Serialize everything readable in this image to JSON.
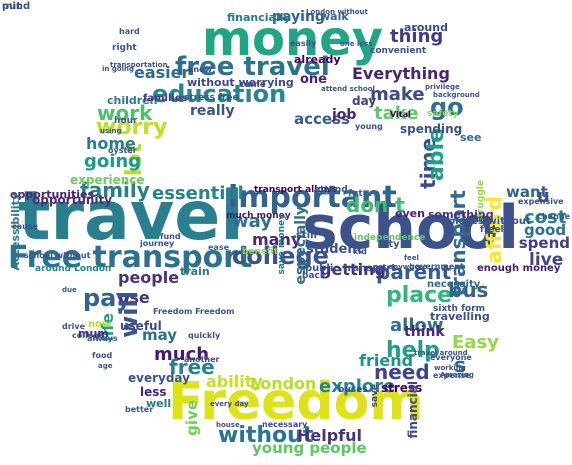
{
  "word_cloud": {
    "words": [
      {
        "text": "travel",
        "color": "#2a7f8e"
      },
      {
        "text": "school",
        "color": "#3b528b"
      },
      {
        "text": "money",
        "color": "#21a685"
      },
      {
        "text": "Freedom",
        "color": "#dde318"
      },
      {
        "text": "Free transport",
        "color": "#2c718e"
      },
      {
        "text": "important",
        "color": "#33628d"
      },
      {
        "text": "college",
        "color": "#3b528b"
      },
      {
        "text": "free travel",
        "color": "#2c728e"
      },
      {
        "text": "education",
        "color": "#24868e"
      },
      {
        "text": "worry",
        "color": "#bddf26"
      },
      {
        "text": "lot",
        "color": "#b5de2b"
      },
      {
        "text": "work",
        "color": "#4ac16d"
      },
      {
        "text": "family",
        "color": "#277f8e"
      },
      {
        "text": "essential",
        "color": "#26828e"
      },
      {
        "text": "way",
        "color": "#2d708e"
      },
      {
        "text": "don t",
        "color": "#3fbc73"
      },
      {
        "text": "go",
        "color": "#2c728e"
      },
      {
        "text": "time",
        "color": "#3e4989"
      },
      {
        "text": "able",
        "color": "#1fa088"
      },
      {
        "text": "thing",
        "color": "#443a83"
      },
      {
        "text": "make",
        "color": "#3e4a89"
      },
      {
        "text": "take",
        "color": "#5ec962"
      },
      {
        "text": "Everything",
        "color": "#482475"
      },
      {
        "text": "easier",
        "color": "#31688e"
      },
      {
        "text": "paying",
        "color": "#35608d"
      },
      {
        "text": "place",
        "color": "#31b57b"
      },
      {
        "text": "allow",
        "color": "#2e6f8e"
      },
      {
        "text": "parent",
        "color": "#365c8d"
      },
      {
        "text": "bus",
        "color": "#33638d"
      },
      {
        "text": "help",
        "color": "#1fa187"
      },
      {
        "text": "Easy",
        "color": "#95d840"
      },
      {
        "text": "need",
        "color": "#414487"
      },
      {
        "text": "s",
        "color": "#31688e"
      },
      {
        "text": "friend",
        "color": "#21918c"
      },
      {
        "text": "pay",
        "color": "#33638d"
      },
      {
        "text": "use",
        "color": "#46327e"
      },
      {
        "text": "will",
        "color": "#3a548c"
      },
      {
        "text": "people",
        "color": "#46337f"
      },
      {
        "text": "life",
        "color": "#20a386"
      },
      {
        "text": "much",
        "color": "#481a6c"
      },
      {
        "text": "free",
        "color": "#26828e"
      },
      {
        "text": "ability",
        "color": "#c8e020"
      },
      {
        "text": "London",
        "color": "#b8de29"
      },
      {
        "text": "explore",
        "color": "#25848e"
      },
      {
        "text": "without",
        "color": "#2b758e"
      },
      {
        "text": "Helpful",
        "color": "#46337f"
      },
      {
        "text": "young people",
        "color": "#5cc863"
      },
      {
        "text": "give",
        "color": "#73d055"
      },
      {
        "text": "going",
        "color": "#1f988b"
      },
      {
        "text": "home",
        "color": "#287c8e"
      },
      {
        "text": "getting",
        "color": "#472d7b"
      },
      {
        "text": "many",
        "color": "#482878"
      },
      {
        "text": "cost",
        "color": "#25838e"
      },
      {
        "text": "good",
        "color": "#2c728e"
      },
      {
        "text": "spend",
        "color": "#433d84"
      },
      {
        "text": "want",
        "color": "#33638d"
      },
      {
        "text": "u",
        "color": "#3b528b"
      },
      {
        "text": "live",
        "color": "#3f4788"
      },
      {
        "text": "afford",
        "color": "#fde725"
      },
      {
        "text": "transport",
        "color": "#2f6c8e"
      },
      {
        "text": "access",
        "color": "#365d8d"
      },
      {
        "text": "job",
        "color": "#482475"
      },
      {
        "text": "day",
        "color": "#433e85"
      },
      {
        "text": "one",
        "color": "#481f70"
      },
      {
        "text": "financially",
        "color": "#2a788e"
      },
      {
        "text": "walk",
        "color": "#31688e"
      },
      {
        "text": "really",
        "color": "#3b528b"
      },
      {
        "text": "experience",
        "color": "#6ccd5a"
      },
      {
        "text": "opportunity",
        "color": "#472f7d"
      },
      {
        "text": "opportunities",
        "color": "#482576"
      },
      {
        "text": "children",
        "color": "#2a788e"
      },
      {
        "text": "families",
        "color": "#453781"
      },
      {
        "text": "without worrying",
        "color": "#3f4889"
      },
      {
        "text": "especially",
        "color": "#2d708e"
      },
      {
        "text": "student",
        "color": "#3b528b"
      },
      {
        "text": "even",
        "color": "#482173"
      },
      {
        "text": "something",
        "color": "#46337f"
      },
      {
        "text": "enough money",
        "color": "#481b6d"
      },
      {
        "text": "necessity",
        "color": "#31688e"
      },
      {
        "text": "think",
        "color": "#482878"
      },
      {
        "text": "travelling",
        "color": "#3b528b"
      },
      {
        "text": "stress",
        "color": "#440154"
      },
      {
        "text": "financial",
        "color": "#3e4a89"
      },
      {
        "text": "everyday",
        "color": "#3b528b"
      },
      {
        "text": "less",
        "color": "#482878"
      },
      {
        "text": "well",
        "color": "#2a788e"
      },
      {
        "text": "may",
        "color": "#2d708e"
      },
      {
        "text": "useful",
        "color": "#3e4989"
      },
      {
        "text": "now",
        "color": "#b5de2b"
      },
      {
        "text": "mum",
        "color": "#482173"
      },
      {
        "text": "Accessibility",
        "color": "#2a788e"
      },
      {
        "text": "train",
        "color": "#2a788e"
      },
      {
        "text": "around London",
        "color": "#25838e"
      },
      {
        "text": "public transport",
        "color": "#3b528b"
      },
      {
        "text": "save",
        "color": "#3e4989"
      },
      {
        "text": "buses",
        "color": "#3e4989"
      },
      {
        "text": "spending",
        "color": "#3b528b"
      },
      {
        "text": "see",
        "color": "#31688e"
      },
      {
        "text": "around",
        "color": "#3e4989"
      },
      {
        "text": "convenient",
        "color": "#3b528b"
      },
      {
        "text": "transport allows",
        "color": "#440154"
      },
      {
        "text": "attend",
        "color": "#3b528b"
      },
      {
        "text": "future",
        "color": "#31688e"
      },
      {
        "text": "much money",
        "color": "#481b6d"
      },
      {
        "text": "save money",
        "color": "#2a788e"
      },
      {
        "text": "expensive",
        "color": "#3e4989"
      },
      {
        "text": "struggle",
        "color": "#95d840"
      },
      {
        "text": "places without",
        "color": "#3b528b"
      },
      {
        "text": "independence",
        "color": "#5ec962"
      },
      {
        "text": "city",
        "color": "#3b528b"
      },
      {
        "text": "journey",
        "color": "#3b528b"
      },
      {
        "text": "ease",
        "color": "#31688e"
      },
      {
        "text": "Freedom Freedom",
        "color": "#3b528b"
      },
      {
        "text": "everyone",
        "color": "#3b528b"
      },
      {
        "text": "sixth form",
        "color": "#3b528b"
      },
      {
        "text": "necessary",
        "color": "#3e4989"
      },
      {
        "text": "house",
        "color": "#3b528b"
      },
      {
        "text": "hard",
        "color": "#3b528b"
      },
      {
        "text": "right",
        "color": "#3b528b"
      },
      {
        "text": "know",
        "color": "#3e4989"
      },
      {
        "text": "easily",
        "color": "#3b528b"
      },
      {
        "text": "safety",
        "color": "#95d840"
      },
      {
        "text": "young",
        "color": "#3b528b"
      },
      {
        "text": "change",
        "color": "#3b528b"
      },
      {
        "text": "freely",
        "color": "#3b528b"
      },
      {
        "text": "kid",
        "color": "#3b528b"
      },
      {
        "text": "feel",
        "color": "#3b528b"
      },
      {
        "text": "already",
        "color": "#440154"
      },
      {
        "text": "Vital",
        "color": "#440154"
      },
      {
        "text": "come",
        "color": "#3e4989"
      },
      {
        "text": "still",
        "color": "#3b528b"
      },
      {
        "text": "back",
        "color": "#3b528b"
      },
      {
        "text": "cause",
        "color": "#3b528b"
      },
      {
        "text": "fund",
        "color": "#3b528b"
      },
      {
        "text": "drive",
        "color": "#3b528b"
      },
      {
        "text": "always",
        "color": "#3b528b"
      },
      {
        "text": "food",
        "color": "#3b528b"
      },
      {
        "text": "hour",
        "color": "#3b528b"
      },
      {
        "text": "oyster",
        "color": "#3b528b"
      },
      {
        "text": "school without",
        "color": "#3b528b"
      },
      {
        "text": "stress free",
        "color": "#3b528b"
      },
      {
        "text": "using",
        "color": "#3b528b"
      },
      {
        "text": "benefit",
        "color": "#95d840"
      },
      {
        "text": "another",
        "color": "#3b528b"
      },
      {
        "text": "college",
        "color": "#3b528b"
      },
      {
        "text": "better",
        "color": "#3b528b"
      },
      {
        "text": "expense",
        "color": "#3b528b"
      },
      {
        "text": "quickly",
        "color": "#3b528b"
      },
      {
        "text": "government",
        "color": "#3b528b"
      },
      {
        "text": "get anywhere",
        "color": "#3b528b"
      },
      {
        "text": "London without",
        "color": "#3b528b"
      },
      {
        "text": "one less",
        "color": "#3b528b"
      },
      {
        "text": "transportation",
        "color": "#3b528b"
      },
      {
        "text": "in going",
        "color": "#3b528b"
      },
      {
        "text": "privilege",
        "color": "#3b528b"
      },
      {
        "text": "background",
        "color": "#3b528b"
      },
      {
        "text": "travel around",
        "color": "#3b528b"
      },
      {
        "text": "working",
        "color": "#3b528b"
      },
      {
        "text": "Amazing",
        "color": "#3b528b"
      },
      {
        "text": "age",
        "color": "#3b528b"
      },
      {
        "text": "due",
        "color": "#3b528b"
      },
      {
        "text": "attend school",
        "color": "#3b528b"
      },
      {
        "text": "every day",
        "color": "#3b528b"
      },
      {
        "text": "mind",
        "color": "#3b528b"
      },
      {
        "text": "put",
        "color": "#3b528b"
      }
    ]
  }
}
